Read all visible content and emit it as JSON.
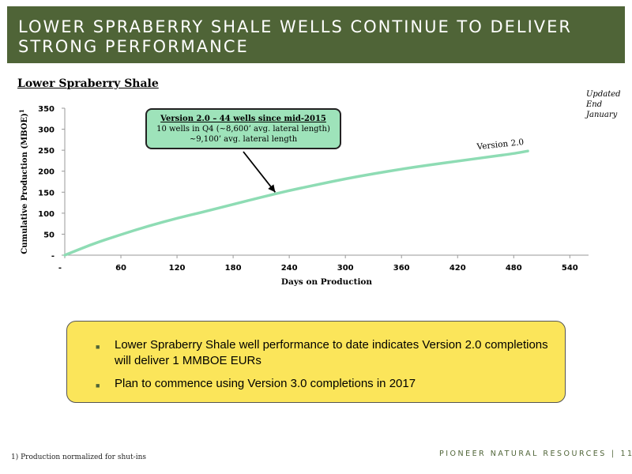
{
  "header": {
    "title": "LOWER SPRABERRY SHALE WELLS CONTINUE TO DELIVER STRONG PERFORMANCE"
  },
  "updated_note": {
    "line1": "Updated",
    "line2": "End",
    "line3": "January"
  },
  "chart_data": {
    "type": "line",
    "title": "Lower Spraberry Shale",
    "xlabel": "Days on Production",
    "ylabel": "Cumulative Production (MBOE)",
    "ylabel_superscript": "1",
    "x_ticks": [
      "-",
      "60",
      "120",
      "180",
      "240",
      "300",
      "360",
      "420",
      "480",
      "540"
    ],
    "y_ticks": [
      "-",
      "50",
      "100",
      "150",
      "200",
      "250",
      "300",
      "350"
    ],
    "xlim": [
      0,
      560
    ],
    "ylim": [
      0,
      350
    ],
    "series": [
      {
        "name": "Version 2.0",
        "color": "#8edcb4",
        "x": [
          0,
          30,
          60,
          90,
          120,
          150,
          180,
          210,
          240,
          270,
          300,
          330,
          360,
          390,
          420,
          450,
          480,
          495
        ],
        "y": [
          0,
          27,
          49,
          70,
          88,
          104,
          121,
          138,
          154,
          168,
          182,
          194,
          205,
          215,
          224,
          233,
          242,
          248
        ]
      }
    ],
    "annotation": {
      "title": "Version 2.0 – 44 wells since mid-2015",
      "line1": "10 wells in Q4 (~8,600’ avg. lateral length)",
      "line2": "~9,100’ avg. lateral length",
      "arrow_to": {
        "x": 225,
        "y": 150
      }
    }
  },
  "takeaways": [
    "Lower Spraberry Shale well performance to date indicates Version 2.0 completions will deliver 1 MMBOE EURs",
    "Plan to commence using Version 3.0 completions in 2017"
  ],
  "footnote": "1)  Production normalized for shut-ins",
  "footer": {
    "brand": "PIONEER NATURAL RESOURCES",
    "separator": "|",
    "page_number": "11"
  },
  "colors": {
    "header_bg": "#4f6437",
    "takeaway_bg": "#fbe55a",
    "callout_bg": "#9ee3ba",
    "line": "#8edcb4"
  }
}
